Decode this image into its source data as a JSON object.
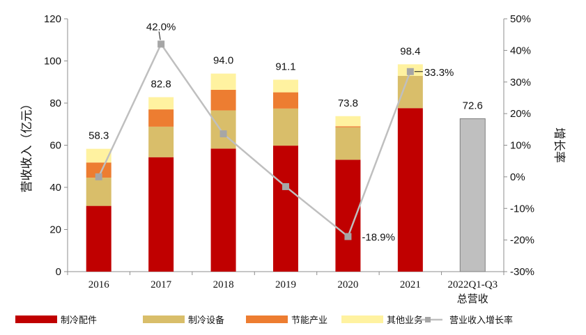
{
  "chart_data": {
    "type": "bar",
    "categories": [
      "2016",
      "2017",
      "2018",
      "2019",
      "2020",
      "2021",
      "2022Q1-Q3\n总营收"
    ],
    "stacked": true,
    "series": [
      {
        "name": "制冷配件",
        "color": "#C00000",
        "values": [
          31.2,
          54.3,
          58.4,
          59.8,
          53.1,
          77.6,
          null
        ]
      },
      {
        "name": "制冷设备",
        "color": "#D9BE6A",
        "values": [
          13.4,
          14.5,
          18.1,
          17.6,
          15.4,
          15.3,
          null
        ]
      },
      {
        "name": "节能产业",
        "color": "#ED7D31",
        "values": [
          7.2,
          8.2,
          9.8,
          7.7,
          0.5,
          0.0,
          null
        ]
      },
      {
        "name": "其他业务",
        "color": "#FFF2A0",
        "values": [
          6.5,
          5.8,
          7.7,
          6.0,
          4.8,
          5.5,
          null
        ]
      },
      {
        "name": "总营收",
        "color": "#BFBFBF",
        "values": [
          null,
          null,
          null,
          null,
          null,
          null,
          72.6
        ]
      }
    ],
    "totals": [
      "58.3",
      "82.8",
      "94.0",
      "91.1",
      "73.8",
      "98.4",
      "72.6"
    ],
    "line_series": {
      "name": "营业收入增长率",
      "color": "#BFBFBF",
      "values": [
        0.0,
        42.0,
        13.6,
        -3.1,
        -18.9,
        33.3
      ],
      "labels": [
        "",
        "42.0%",
        "",
        "",
        "-18.9%",
        "33.3%"
      ]
    },
    "ylabel": "营收收入（亿元）",
    "y2label": "增长率",
    "ylim": [
      0,
      120
    ],
    "y2lim": [
      -30,
      50
    ],
    "yticks": [
      "0",
      "20",
      "40",
      "60",
      "80",
      "100",
      "120"
    ],
    "y2ticks": [
      "-30%",
      "-20%",
      "-10%",
      "0%",
      "10%",
      "20%",
      "30%",
      "40%",
      "50%"
    ],
    "legend": [
      "制冷配件",
      "制冷设备",
      "节能产业",
      "其他业务",
      "营业收入增长率"
    ],
    "legend_position": "bottom",
    "grid": false
  }
}
